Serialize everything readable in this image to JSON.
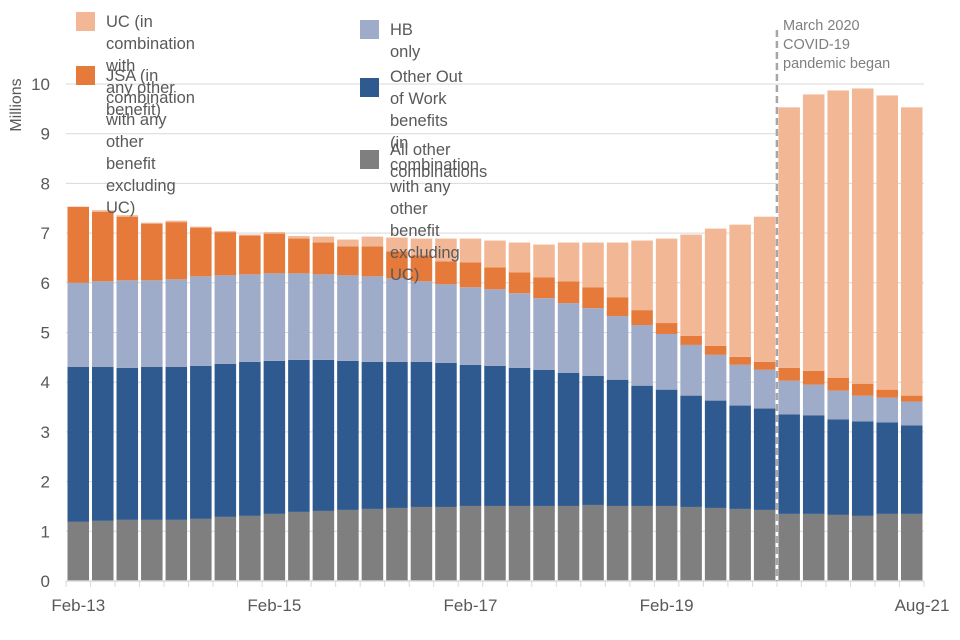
{
  "chart_data": {
    "type": "bar",
    "stacked": true,
    "title": "",
    "xlabel": "",
    "ylabel": "Millions",
    "ylim": [
      0,
      10
    ],
    "yticks": [
      0,
      1,
      2,
      3,
      4,
      5,
      6,
      7,
      8,
      9,
      10
    ],
    "grid": true,
    "legend_position": "top-left",
    "categories": [
      "Feb-13",
      "May-13",
      "Aug-13",
      "Nov-13",
      "Feb-14",
      "May-14",
      "Aug-14",
      "Nov-14",
      "Feb-15",
      "May-15",
      "Aug-15",
      "Nov-15",
      "Feb-16",
      "May-16",
      "Aug-16",
      "Nov-16",
      "Feb-17",
      "May-17",
      "Aug-17",
      "Nov-17",
      "Feb-18",
      "May-18",
      "Aug-18",
      "Nov-18",
      "Feb-19",
      "May-19",
      "Aug-19",
      "Nov-19",
      "Feb-20",
      "May-20",
      "Aug-20",
      "Nov-20",
      "Feb-21",
      "May-21",
      "Aug-21"
    ],
    "xtick_labels": [
      {
        "index": 0,
        "label": "Feb-13"
      },
      {
        "index": 8,
        "label": "Feb-15"
      },
      {
        "index": 16,
        "label": "Feb-17"
      },
      {
        "index": 24,
        "label": "Feb-19"
      },
      {
        "index": 34,
        "label": "Aug-21"
      }
    ],
    "series": [
      {
        "name": "All other combinations",
        "color": "#7f7f7f",
        "values": [
          1.19,
          1.21,
          1.23,
          1.23,
          1.23,
          1.25,
          1.29,
          1.31,
          1.35,
          1.39,
          1.41,
          1.43,
          1.45,
          1.47,
          1.49,
          1.49,
          1.51,
          1.51,
          1.51,
          1.51,
          1.51,
          1.53,
          1.51,
          1.51,
          1.51,
          1.49,
          1.47,
          1.45,
          1.43,
          1.35,
          1.35,
          1.33,
          1.31,
          1.35,
          1.35
        ]
      },
      {
        "name": "Other Out of Work benefits (in combination with any other benefit excluding UC)",
        "color": "#2f5a8f",
        "values": [
          3.12,
          3.1,
          3.06,
          3.08,
          3.08,
          3.08,
          3.08,
          3.1,
          3.08,
          3.06,
          3.04,
          3.0,
          2.96,
          2.94,
          2.92,
          2.9,
          2.84,
          2.82,
          2.78,
          2.74,
          2.68,
          2.6,
          2.54,
          2.42,
          2.34,
          2.24,
          2.16,
          2.08,
          2.04,
          2.0,
          1.98,
          1.92,
          1.9,
          1.84,
          1.78
        ]
      },
      {
        "name": "HB only",
        "color": "#9eabc9",
        "values": [
          1.69,
          1.72,
          1.76,
          1.74,
          1.76,
          1.8,
          1.78,
          1.76,
          1.76,
          1.74,
          1.72,
          1.72,
          1.72,
          1.68,
          1.62,
          1.58,
          1.56,
          1.54,
          1.5,
          1.44,
          1.4,
          1.36,
          1.28,
          1.22,
          1.12,
          1.02,
          0.92,
          0.82,
          0.78,
          0.68,
          0.62,
          0.58,
          0.52,
          0.5,
          0.48
        ]
      },
      {
        "name": "JSA (in combination with any other benefit excluding UC)",
        "color": "#e57a3a",
        "values": [
          1.53,
          1.4,
          1.28,
          1.14,
          1.15,
          0.98,
          0.87,
          0.78,
          0.8,
          0.7,
          0.64,
          0.58,
          0.6,
          0.54,
          0.52,
          0.46,
          0.5,
          0.44,
          0.42,
          0.42,
          0.44,
          0.42,
          0.38,
          0.3,
          0.22,
          0.18,
          0.18,
          0.16,
          0.16,
          0.26,
          0.28,
          0.26,
          0.24,
          0.16,
          0.12
        ]
      },
      {
        "name": "UC (in combination with any other benefit)",
        "color": "#f2b795",
        "values": [
          0.0,
          0.03,
          0.03,
          0.02,
          0.03,
          0.02,
          0.02,
          0.02,
          0.03,
          0.05,
          0.12,
          0.14,
          0.2,
          0.28,
          0.34,
          0.46,
          0.48,
          0.54,
          0.6,
          0.66,
          0.78,
          0.9,
          1.1,
          1.4,
          1.7,
          2.04,
          2.36,
          2.66,
          2.92,
          5.24,
          5.56,
          5.78,
          5.94,
          5.92,
          5.8
        ]
      }
    ],
    "annotations": [
      {
        "text": "March 2020\nCOVID-19\npandemic began",
        "between": [
          "Feb-20",
          "May-20"
        ],
        "style": "dashed-vertical-line"
      }
    ]
  },
  "legend": {
    "items": [
      {
        "label": "UC (in combination with\nany other benefit)",
        "color": "#f2b795"
      },
      {
        "label": "JSA (in combination with any\nother benefit excluding UC)",
        "color": "#e57a3a"
      },
      {
        "label": "HB only",
        "color": "#9eabc9"
      },
      {
        "label": "Other Out of Work benefits\n(in combination with any\nother benefit excluding UC)",
        "color": "#2f5a8f"
      },
      {
        "label": "All other\ncombinations",
        "color": "#7f7f7f"
      }
    ]
  },
  "annotation_text": "March 2020\nCOVID-19\npandemic began"
}
